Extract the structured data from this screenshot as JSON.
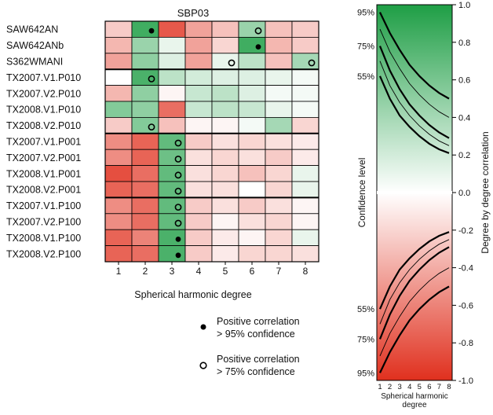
{
  "chart_data": [
    {
      "type": "heatmap",
      "title": "SBP03",
      "xlabel": "Spherical harmonic degree",
      "ylabel": "",
      "x": [
        1,
        2,
        3,
        4,
        5,
        6,
        7,
        8
      ],
      "x_tick_labels": [
        "1",
        "2",
        "3",
        "4",
        "5",
        "6",
        "7",
        "8"
      ],
      "models": [
        "SAW642AN",
        "SAW642ANb",
        "S362WMANI",
        "TX2007.V1.P010",
        "TX2007.V2.P010",
        "TX2008.V1.P010",
        "TX2008.V2.P010",
        "TX2007.V1.P001",
        "TX2007.V2.P001",
        "TX2008.V1.P001",
        "TX2008.V2.P001",
        "TX2007.V1.P100",
        "TX2007.V2.P100",
        "TX2008.V1.P100",
        "TX2008.V2.P100"
      ],
      "correlation_range": [
        -1.0,
        1.0
      ],
      "values": [
        [
          -0.25,
          0.85,
          -0.8,
          -0.45,
          -0.3,
          0.45,
          -0.3,
          -0.25
        ],
        [
          -0.35,
          0.45,
          0.1,
          -0.45,
          -0.2,
          0.85,
          -0.35,
          -0.25
        ],
        [
          -0.45,
          0.5,
          0.15,
          -0.45,
          0.1,
          0.3,
          -0.3,
          0.4
        ],
        [
          0.0,
          0.8,
          0.3,
          0.2,
          0.15,
          0.15,
          0.1,
          0.05
        ],
        [
          -0.35,
          0.5,
          -0.05,
          0.25,
          0.3,
          0.15,
          0.05,
          0.05
        ],
        [
          0.55,
          0.5,
          -0.7,
          0.25,
          0.3,
          0.25,
          0.1,
          0.05
        ],
        [
          -0.25,
          0.55,
          -0.3,
          -0.05,
          -0.05,
          0.05,
          0.4,
          -0.2
        ],
        [
          -0.55,
          -0.75,
          0.7,
          -0.25,
          -0.15,
          -0.2,
          -0.15,
          -0.1
        ],
        [
          -0.55,
          -0.75,
          0.65,
          -0.15,
          -0.2,
          -0.15,
          -0.25,
          -0.1
        ],
        [
          -0.85,
          -0.7,
          0.7,
          -0.15,
          -0.2,
          -0.3,
          -0.2,
          0.1
        ],
        [
          -0.75,
          -0.7,
          0.7,
          -0.15,
          -0.15,
          0.0,
          -0.2,
          0.1
        ],
        [
          -0.55,
          -0.7,
          0.7,
          -0.25,
          -0.15,
          -0.25,
          -0.15,
          -0.05
        ],
        [
          -0.55,
          -0.7,
          0.7,
          -0.25,
          -0.05,
          -0.15,
          -0.2,
          -0.05
        ],
        [
          -0.75,
          -0.6,
          0.8,
          -0.25,
          -0.1,
          -0.05,
          -0.2,
          0.1
        ],
        [
          -0.75,
          -0.7,
          0.8,
          -0.25,
          -0.1,
          -0.2,
          -0.2,
          -0.15
        ]
      ],
      "markers": [
        {
          "model": "SAW642AN",
          "degree": 2,
          "level": "95"
        },
        {
          "model": "SAW642ANb",
          "degree": 6,
          "level": "95"
        },
        {
          "model": "SAW642AN",
          "degree": 6,
          "level": "75"
        },
        {
          "model": "S362WMANI",
          "degree": 5,
          "level": "75"
        },
        {
          "model": "S362WMANI",
          "degree": 8,
          "level": "75"
        },
        {
          "model": "TX2007.V1.P010",
          "degree": 2,
          "level": "75"
        },
        {
          "model": "TX2008.V2.P010",
          "degree": 2,
          "level": "75"
        },
        {
          "model": "TX2007.V1.P001",
          "degree": 3,
          "level": "75"
        },
        {
          "model": "TX2007.V2.P001",
          "degree": 3,
          "level": "75"
        },
        {
          "model": "TX2008.V1.P001",
          "degree": 3,
          "level": "75"
        },
        {
          "model": "TX2008.V2.P001",
          "degree": 3,
          "level": "75"
        },
        {
          "model": "TX2007.V1.P100",
          "degree": 3,
          "level": "75"
        },
        {
          "model": "TX2007.V2.P100",
          "degree": 3,
          "level": "75"
        },
        {
          "model": "TX2008.V1.P100",
          "degree": 3,
          "level": "95"
        },
        {
          "model": "TX2008.V2.P100",
          "degree": 3,
          "level": "95"
        }
      ],
      "legend": [
        {
          "symbol": "filled-dot",
          "line1": "Positive correlation",
          "line2": "> 95% confidence"
        },
        {
          "symbol": "open-circle",
          "line1": "Positive correlation",
          "line2": "> 75% confidence"
        }
      ],
      "colors": {
        "positive": "#1e9e45",
        "negative": "#e0301e",
        "neutral": "#ffffff"
      }
    },
    {
      "type": "line",
      "title": "",
      "xlabel": "Spherical harmonic degree",
      "ylabel": "Confidence level",
      "y2label": "Degree by degree correlation",
      "x": [
        1,
        2,
        3,
        4,
        5,
        6,
        7,
        8
      ],
      "ylim": [
        -1.0,
        1.0
      ],
      "y_ticks": [
        "1.0",
        "0.8",
        "0.6",
        "0.4",
        "0.2",
        "0.0",
        "-0.2",
        "-0.4",
        "-0.6",
        "-0.8",
        "-1.0"
      ],
      "y_tick_values": [
        1.0,
        0.8,
        0.6,
        0.4,
        0.2,
        0.0,
        -0.2,
        -0.4,
        -0.6,
        -0.8,
        -1.0
      ],
      "confidence_labels": [
        "95%",
        "75%",
        "55%",
        "55%",
        "75%",
        "95%"
      ],
      "series": [
        {
          "level": "95%",
          "values": [
            0.96,
            0.85,
            0.76,
            0.68,
            0.62,
            0.57,
            0.53,
            0.5
          ]
        },
        {
          "level": "75%",
          "values": [
            0.78,
            0.65,
            0.55,
            0.47,
            0.41,
            0.36,
            0.32,
            0.29
          ]
        },
        {
          "level": "55%",
          "values": [
            0.62,
            0.5,
            0.41,
            0.35,
            0.3,
            0.26,
            0.23,
            0.21
          ]
        },
        {
          "level": "95%",
          "values": [
            -0.96,
            -0.85,
            -0.76,
            -0.68,
            -0.62,
            -0.57,
            -0.53,
            -0.5
          ]
        },
        {
          "level": "75%",
          "values": [
            -0.78,
            -0.65,
            -0.55,
            -0.47,
            -0.41,
            -0.36,
            -0.32,
            -0.29
          ]
        },
        {
          "level": "55%",
          "values": [
            -0.62,
            -0.5,
            -0.41,
            -0.35,
            -0.3,
            -0.26,
            -0.23,
            -0.21
          ]
        }
      ]
    }
  ]
}
